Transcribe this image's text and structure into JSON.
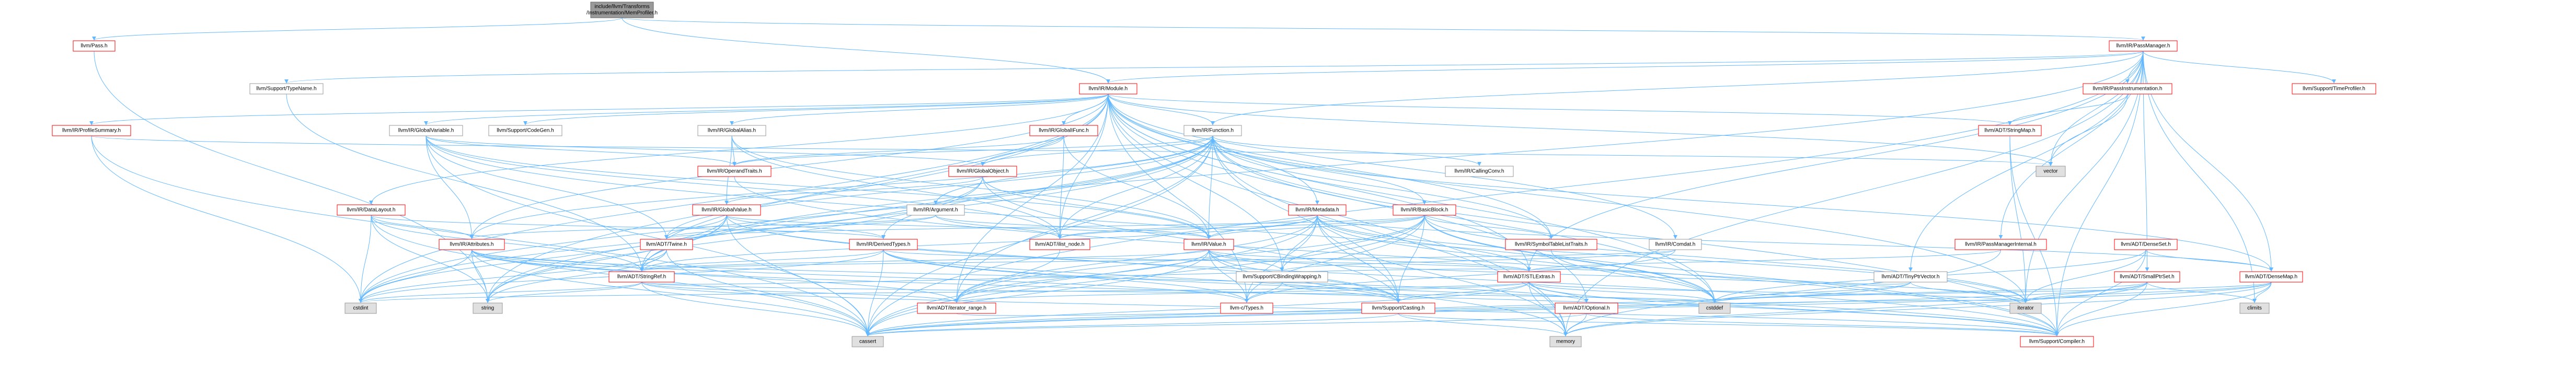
{
  "colors": {
    "edge": "#63b8ff",
    "root_fill": "#999999",
    "root_stroke": "#666666",
    "file_fill": "#ffffff",
    "file_stroke": "#ff0000",
    "plain_stroke": "#999999",
    "system_fill": "#e0e0e0"
  },
  "nodes": [
    {
      "id": "root",
      "kind": "root",
      "lines": [
        "include/llvm/Transforms",
        "/Instrumentation/MemProfiler.h"
      ]
    },
    {
      "id": "pass",
      "kind": "file",
      "lines": [
        "llvm/Pass.h"
      ]
    },
    {
      "id": "passmanager",
      "kind": "file",
      "lines": [
        "llvm/IR/PassManager.h"
      ]
    },
    {
      "id": "module",
      "kind": "file",
      "lines": [
        "llvm/IR/Module.h"
      ]
    },
    {
      "id": "typename",
      "kind": "plain",
      "lines": [
        "llvm/Support/TypeName.h"
      ]
    },
    {
      "id": "passinstrumentation",
      "kind": "file",
      "lines": [
        "llvm/IR/PassInstrumentation.h"
      ]
    },
    {
      "id": "timeprofiler",
      "kind": "file",
      "lines": [
        "llvm/Support/TimeProfiler.h"
      ]
    },
    {
      "id": "profilesummary",
      "kind": "file",
      "lines": [
        "llvm/IR/ProfileSummary.h"
      ]
    },
    {
      "id": "globalvariable",
      "kind": "plain",
      "lines": [
        "llvm/IR/GlobalVariable.h"
      ]
    },
    {
      "id": "codegen",
      "kind": "plain",
      "lines": [
        "llvm/Support/CodeGen.h"
      ]
    },
    {
      "id": "globalalias",
      "kind": "plain",
      "lines": [
        "llvm/IR/GlobalAlias.h"
      ]
    },
    {
      "id": "globalifunc",
      "kind": "file",
      "lines": [
        "llvm/IR/GlobalIFunc.h"
      ]
    },
    {
      "id": "function",
      "kind": "plain",
      "lines": [
        "llvm/IR/Function.h"
      ]
    },
    {
      "id": "stringmap",
      "kind": "file",
      "lines": [
        "llvm/ADT/StringMap.h"
      ]
    },
    {
      "id": "vector",
      "kind": "system",
      "lines": [
        "vector"
      ]
    },
    {
      "id": "operandtraits",
      "kind": "file",
      "lines": [
        "llvm/IR/OperandTraits.h"
      ]
    },
    {
      "id": "globalobject",
      "kind": "file",
      "lines": [
        "llvm/IR/GlobalObject.h"
      ]
    },
    {
      "id": "callingconv",
      "kind": "plain",
      "lines": [
        "llvm/IR/CallingConv.h"
      ]
    },
    {
      "id": "datalayout",
      "kind": "file",
      "lines": [
        "llvm/IR/DataLayout.h"
      ]
    },
    {
      "id": "globalvalue",
      "kind": "file",
      "lines": [
        "llvm/IR/GlobalValue.h"
      ]
    },
    {
      "id": "argument",
      "kind": "plain",
      "lines": [
        "llvm/IR/Argument.h"
      ]
    },
    {
      "id": "metadata",
      "kind": "file",
      "lines": [
        "llvm/IR/Metadata.h"
      ]
    },
    {
      "id": "basicblock",
      "kind": "file",
      "lines": [
        "llvm/IR/BasicBlock.h"
      ]
    },
    {
      "id": "attributes",
      "kind": "file",
      "lines": [
        "llvm/IR/Attributes.h"
      ]
    },
    {
      "id": "twine",
      "kind": "file",
      "lines": [
        "llvm/ADT/Twine.h"
      ]
    },
    {
      "id": "derivedtypes",
      "kind": "file",
      "lines": [
        "llvm/IR/DerivedTypes.h"
      ]
    },
    {
      "id": "ilistnode",
      "kind": "file",
      "lines": [
        "llvm/ADT/ilist_node.h"
      ]
    },
    {
      "id": "value",
      "kind": "file",
      "lines": [
        "llvm/IR/Value.h"
      ]
    },
    {
      "id": "symboltable",
      "kind": "file",
      "lines": [
        "llvm/IR/SymbolTableListTraits.h"
      ]
    },
    {
      "id": "comdat",
      "kind": "plain",
      "lines": [
        "llvm/IR/Comdat.h"
      ]
    },
    {
      "id": "passmanagerinternal",
      "kind": "file",
      "lines": [
        "llvm/IR/PassManagerInternal.h"
      ]
    },
    {
      "id": "densetset",
      "kind": "file",
      "lines": [
        "llvm/ADT/DenseSet.h"
      ]
    },
    {
      "id": "stringref",
      "kind": "file",
      "lines": [
        "llvm/ADT/StringRef.h"
      ]
    },
    {
      "id": "cbindingwrapping",
      "kind": "plain",
      "lines": [
        "llvm/Support/CBindingWrapping.h"
      ]
    },
    {
      "id": "stlextras",
      "kind": "file",
      "lines": [
        "llvm/ADT/STLExtras.h"
      ]
    },
    {
      "id": "tinyptrvector",
      "kind": "plain",
      "lines": [
        "llvm/ADT/TinyPtrVector.h"
      ]
    },
    {
      "id": "smallptrset",
      "kind": "file",
      "lines": [
        "llvm/ADT/SmallPtrSet.h"
      ]
    },
    {
      "id": "densemap",
      "kind": "file",
      "lines": [
        "llvm/ADT/DenseMap.h"
      ]
    },
    {
      "id": "cstdint",
      "kind": "system",
      "lines": [
        "cstdint"
      ]
    },
    {
      "id": "string",
      "kind": "system",
      "lines": [
        "string"
      ]
    },
    {
      "id": "iteratorrange",
      "kind": "file",
      "lines": [
        "llvm/ADT/iterator_range.h"
      ]
    },
    {
      "id": "ctypes",
      "kind": "file",
      "lines": [
        "llvm-c/Types.h"
      ]
    },
    {
      "id": "casting",
      "kind": "file",
      "lines": [
        "llvm/Support/Casting.h"
      ]
    },
    {
      "id": "optional",
      "kind": "file",
      "lines": [
        "llvm/ADT/Optional.h"
      ]
    },
    {
      "id": "cstddef",
      "kind": "system",
      "lines": [
        "cstddef"
      ]
    },
    {
      "id": "iterator",
      "kind": "system",
      "lines": [
        "iterator"
      ]
    },
    {
      "id": "climits",
      "kind": "system",
      "lines": [
        "climits"
      ]
    },
    {
      "id": "cassert",
      "kind": "system",
      "lines": [
        "cassert"
      ]
    },
    {
      "id": "memory",
      "kind": "system",
      "lines": [
        "memory"
      ]
    },
    {
      "id": "compiler",
      "kind": "file",
      "lines": [
        "llvm/Support/Compiler.h"
      ]
    }
  ],
  "edges": [
    [
      "root",
      "pass"
    ],
    [
      "root",
      "passmanager"
    ],
    [
      "root",
      "module"
    ],
    [
      "pass",
      "string"
    ],
    [
      "passmanager",
      "typename"
    ],
    [
      "passmanager",
      "module"
    ],
    [
      "passmanager",
      "passinstrumentation"
    ],
    [
      "passmanager",
      "timeprofiler"
    ],
    [
      "passmanager",
      "function"
    ],
    [
      "passmanager",
      "passmanagerinternal"
    ],
    [
      "passmanager",
      "stringref"
    ],
    [
      "passmanager",
      "densemap"
    ],
    [
      "passmanager",
      "smallptrset"
    ],
    [
      "passmanager",
      "tinyptrvector"
    ],
    [
      "passmanager",
      "stlextras"
    ],
    [
      "passmanager",
      "vector"
    ],
    [
      "passmanager",
      "climits"
    ],
    [
      "passmanager",
      "cassert"
    ],
    [
      "passmanager",
      "iterator"
    ],
    [
      "passmanager",
      "memory"
    ],
    [
      "passmanager",
      "compiler"
    ],
    [
      "passinstrumentation",
      "stringmap"
    ],
    [
      "passinstrumentation",
      "vector"
    ],
    [
      "typename",
      "stringref"
    ],
    [
      "module",
      "profilesummary"
    ],
    [
      "module",
      "globalvariable"
    ],
    [
      "module",
      "codegen"
    ],
    [
      "module",
      "globalalias"
    ],
    [
      "module",
      "globalifunc"
    ],
    [
      "module",
      "function"
    ],
    [
      "module",
      "stringmap"
    ],
    [
      "module",
      "datalayout"
    ],
    [
      "module",
      "attributes"
    ],
    [
      "module",
      "comdat"
    ],
    [
      "module",
      "metadata"
    ],
    [
      "module",
      "symboltable"
    ],
    [
      "module",
      "ilistnode"
    ],
    [
      "module",
      "stringref"
    ],
    [
      "module",
      "stlextras"
    ],
    [
      "module",
      "iteratorrange"
    ],
    [
      "module",
      "ctypes"
    ],
    [
      "module",
      "cbindingwrapping"
    ],
    [
      "module",
      "cstddef"
    ],
    [
      "module",
      "cstdint"
    ],
    [
      "module",
      "iterator"
    ],
    [
      "module",
      "memory"
    ],
    [
      "module",
      "string"
    ],
    [
      "module",
      "vector"
    ],
    [
      "module",
      "optional"
    ],
    [
      "profilesummary",
      "cassert"
    ],
    [
      "profilesummary",
      "cstdint"
    ],
    [
      "profilesummary",
      "vector"
    ],
    [
      "globalvariable",
      "globalobject"
    ],
    [
      "globalvariable",
      "attributes"
    ],
    [
      "globalvariable",
      "operandtraits"
    ],
    [
      "globalvariable",
      "twine"
    ],
    [
      "globalvariable",
      "ilistnode"
    ],
    [
      "globalvariable",
      "value"
    ],
    [
      "globalvariable",
      "cassert"
    ],
    [
      "globalvariable",
      "cstddef"
    ],
    [
      "globalalias",
      "globalvalue"
    ],
    [
      "globalalias",
      "operandtraits"
    ],
    [
      "globalalias",
      "value"
    ],
    [
      "globalalias",
      "ilistnode"
    ],
    [
      "globalifunc",
      "globalobject"
    ],
    [
      "globalifunc",
      "operandtraits"
    ],
    [
      "globalifunc",
      "value"
    ],
    [
      "globalifunc",
      "ilistnode"
    ],
    [
      "function",
      "argument"
    ],
    [
      "function",
      "attributes"
    ],
    [
      "function",
      "basicblock"
    ],
    [
      "function",
      "callingconv"
    ],
    [
      "function",
      "derivedtypes"
    ],
    [
      "function",
      "globalobject"
    ],
    [
      "function",
      "operandtraits"
    ],
    [
      "function",
      "symboltable"
    ],
    [
      "function",
      "value"
    ],
    [
      "function",
      "ilistnode"
    ],
    [
      "function",
      "stringref"
    ],
    [
      "function",
      "twine"
    ],
    [
      "function",
      "densemap"
    ],
    [
      "function",
      "casting"
    ],
    [
      "function",
      "compiler"
    ],
    [
      "function",
      "cassert"
    ],
    [
      "function",
      "cstddef"
    ],
    [
      "function",
      "cstdint"
    ],
    [
      "function",
      "memory"
    ],
    [
      "function",
      "string"
    ],
    [
      "function",
      "iteratorrange"
    ],
    [
      "stringmap",
      "iterator"
    ],
    [
      "stringmap",
      "compiler"
    ],
    [
      "operandtraits",
      "compiler"
    ],
    [
      "globalobject",
      "globalvalue"
    ],
    [
      "globalobject",
      "value"
    ],
    [
      "globalobject",
      "casting"
    ],
    [
      "globalobject",
      "cstdint"
    ],
    [
      "globalobject",
      "string"
    ],
    [
      "datalayout",
      "attributes"
    ],
    [
      "datalayout",
      "stringref"
    ],
    [
      "datalayout",
      "derivedtypes"
    ],
    [
      "datalayout",
      "string"
    ],
    [
      "datalayout",
      "cassert"
    ],
    [
      "datalayout",
      "cstdint"
    ],
    [
      "globalvalue",
      "twine"
    ],
    [
      "globalvalue",
      "derivedtypes"
    ],
    [
      "globalvalue",
      "value"
    ],
    [
      "globalvalue",
      "casting"
    ],
    [
      "globalvalue",
      "compiler"
    ],
    [
      "globalvalue",
      "cassert"
    ],
    [
      "globalvalue",
      "cstdint"
    ],
    [
      "globalvalue",
      "string"
    ],
    [
      "globalvalue",
      "stringref"
    ],
    [
      "argument",
      "attributes"
    ],
    [
      "argument",
      "value"
    ],
    [
      "argument",
      "twine"
    ],
    [
      "argument",
      "ilistnode"
    ],
    [
      "metadata",
      "ilistnode"
    ],
    [
      "metadata",
      "stringref"
    ],
    [
      "metadata",
      "stlextras"
    ],
    [
      "metadata",
      "value"
    ],
    [
      "metadata",
      "casting"
    ],
    [
      "metadata",
      "cbindingwrapping"
    ],
    [
      "metadata",
      "iteratorrange"
    ],
    [
      "metadata",
      "densemap"
    ],
    [
      "metadata",
      "cstddef"
    ],
    [
      "metadata",
      "iterator"
    ],
    [
      "metadata",
      "memory"
    ],
    [
      "metadata",
      "cassert"
    ],
    [
      "metadata",
      "ctypes"
    ],
    [
      "basicblock",
      "ilistnode"
    ],
    [
      "basicblock",
      "twine"
    ],
    [
      "basicblock",
      "symboltable"
    ],
    [
      "basicblock",
      "value"
    ],
    [
      "basicblock",
      "casting"
    ],
    [
      "basicblock",
      "compiler"
    ],
    [
      "basicblock",
      "cbindingwrapping"
    ],
    [
      "basicblock",
      "iteratorrange"
    ],
    [
      "basicblock",
      "ctypes"
    ],
    [
      "basicblock",
      "cassert"
    ],
    [
      "basicblock",
      "cstddef"
    ],
    [
      "basicblock",
      "iterator"
    ],
    [
      "attributes",
      "stringref"
    ],
    [
      "attributes",
      "cstdint"
    ],
    [
      "attributes",
      "string"
    ],
    [
      "attributes",
      "optional"
    ],
    [
      "attributes",
      "iteratorrange"
    ],
    [
      "attributes",
      "ctypes"
    ],
    [
      "attributes",
      "cassert"
    ],
    [
      "attributes",
      "compiler"
    ],
    [
      "twine",
      "stringref"
    ],
    [
      "twine",
      "cassert"
    ],
    [
      "twine",
      "cstdint"
    ],
    [
      "twine",
      "string"
    ],
    [
      "derivedtypes",
      "stringref"
    ],
    [
      "derivedtypes",
      "stlextras"
    ],
    [
      "derivedtypes",
      "casting"
    ],
    [
      "derivedtypes",
      "compiler"
    ],
    [
      "derivedtypes",
      "cassert"
    ],
    [
      "derivedtypes",
      "cstdint"
    ],
    [
      "derivedtypes",
      "ctypes"
    ],
    [
      "ilistnode",
      "iteratorrange"
    ],
    [
      "value",
      "stringref"
    ],
    [
      "value",
      "iteratorrange"
    ],
    [
      "value",
      "ctypes"
    ],
    [
      "value",
      "casting"
    ],
    [
      "value",
      "cbindingwrapping"
    ],
    [
      "value",
      "cassert"
    ],
    [
      "value",
      "iterator"
    ],
    [
      "value",
      "memory"
    ],
    [
      "value",
      "stlextras"
    ],
    [
      "symboltable",
      "cstddef"
    ],
    [
      "comdat",
      "stringref"
    ],
    [
      "comdat",
      "cbindingwrapping"
    ],
    [
      "comdat",
      "ctypes"
    ],
    [
      "passmanagerinternal",
      "stlextras"
    ],
    [
      "passmanagerinternal",
      "memory"
    ],
    [
      "densetset",
      "densemap"
    ],
    [
      "densetset",
      "iterator"
    ],
    [
      "densetset",
      "cstddef"
    ],
    [
      "densetset",
      "compiler"
    ],
    [
      "stringref",
      "stlextras"
    ],
    [
      "stringref",
      "iteratorrange"
    ],
    [
      "stringref",
      "compiler"
    ],
    [
      "stringref",
      "cassert"
    ],
    [
      "stringref",
      "cstddef"
    ],
    [
      "stringref",
      "cstdint"
    ],
    [
      "stringref",
      "string"
    ],
    [
      "cbindingwrapping",
      "casting"
    ],
    [
      "cbindingwrapping",
      "ctypes"
    ],
    [
      "stlextras",
      "iteratorrange"
    ],
    [
      "stlextras",
      "optional"
    ],
    [
      "stlextras",
      "casting"
    ],
    [
      "stlextras",
      "compiler"
    ],
    [
      "stlextras",
      "cassert"
    ],
    [
      "stlextras",
      "cstddef"
    ],
    [
      "stlextras",
      "cstdint"
    ],
    [
      "stlextras",
      "memory"
    ],
    [
      "stlextras",
      "iterator"
    ],
    [
      "tinyptrvector",
      "stlextras"
    ],
    [
      "tinyptrvector",
      "cstddef"
    ],
    [
      "tinyptrvector",
      "iterator"
    ],
    [
      "tinyptrvector",
      "cassert"
    ],
    [
      "smallptrset",
      "compiler"
    ],
    [
      "smallptrset",
      "cstddef"
    ],
    [
      "smallptrset",
      "iterator"
    ],
    [
      "smallptrset",
      "climits"
    ],
    [
      "smallptrset",
      "cassert"
    ],
    [
      "smallptrset",
      "memory"
    ],
    [
      "densemap",
      "compiler"
    ],
    [
      "densemap",
      "iterator"
    ],
    [
      "densemap",
      "climits"
    ],
    [
      "densemap",
      "cassert"
    ],
    [
      "densemap",
      "memory"
    ],
    [
      "densemap",
      "cstddef"
    ],
    [
      "casting",
      "compiler"
    ],
    [
      "casting",
      "cassert"
    ],
    [
      "casting",
      "memory"
    ],
    [
      "optional",
      "compiler"
    ],
    [
      "optional",
      "memory"
    ],
    [
      "optional",
      "cassert"
    ],
    [
      "iteratorrange",
      "iterator"
    ]
  ]
}
